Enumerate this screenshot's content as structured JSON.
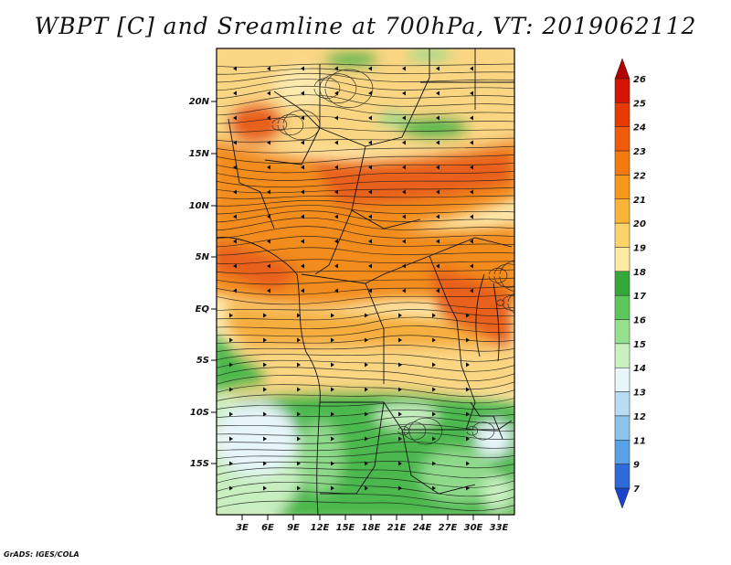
{
  "title": "WBPT [C] and Sreamline at 700hPa, VT: 2019062112",
  "credit": "GrADS: IGES/COLA",
  "lat_ticks": [
    "20N",
    "15N",
    "10N",
    "5N",
    "EQ",
    "5S",
    "10S",
    "15S"
  ],
  "lon_ticks": [
    "3E",
    "6E",
    "9E",
    "12E",
    "15E",
    "18E",
    "21E",
    "24E",
    "27E",
    "30E",
    "33E"
  ],
  "colorbar": {
    "labels": [
      "26",
      "25",
      "24",
      "23",
      "22",
      "21",
      "20",
      "19",
      "18",
      "17",
      "16",
      "15",
      "14",
      "13",
      "12",
      "11",
      "9",
      "7"
    ],
    "colors": [
      "#b30000",
      "#d41400",
      "#e63a00",
      "#f05a0a",
      "#f47a10",
      "#f7981a",
      "#f9b43a",
      "#fbd36a",
      "#fdeaa0",
      "#34a83a",
      "#5cc75c",
      "#96df8e",
      "#c8f0c0",
      "#e8f6fa",
      "#b8dcf2",
      "#8cc4ec",
      "#5aa2e6",
      "#2e6ad8",
      "#1a44c8"
    ]
  },
  "fields": {
    "colors": {
      "orange_deep": "#e8611c",
      "orange": "#f28c1e",
      "orange_light": "#f6ad3c",
      "yellow": "#fad683",
      "cream": "#fde9ad",
      "green": "#4bb84d",
      "green_light": "#8fd98a",
      "green_pale": "#c7efc0",
      "blue_pale": "#e6f5fa"
    }
  }
}
